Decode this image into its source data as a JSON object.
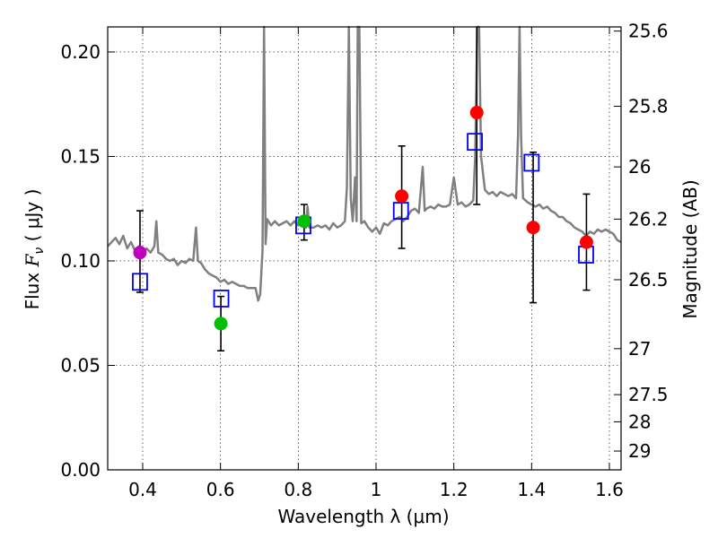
{
  "chart_data": {
    "type": "scatter",
    "xlabel": "Wavelength  λ (μm)",
    "ylabel_prefix": "Flux  ",
    "ylabel_symbol": "F",
    "ylabel_sub": "ν",
    "ylabel_units": "  ( μJy )",
    "y2label": "Magnitude (AB)",
    "xlim": [
      0.31,
      1.63
    ],
    "ylim": [
      0.0,
      0.212
    ],
    "grid": true,
    "x_ticks": [
      0.4,
      0.6,
      0.8,
      1.0,
      1.2,
      1.4,
      1.6
    ],
    "x_tick_labels": [
      "0.4",
      "0.6",
      "0.8",
      "1",
      "1.2",
      "1.4",
      "1.6"
    ],
    "y_ticks": [
      0.0,
      0.05,
      0.1,
      0.15,
      0.2
    ],
    "y_tick_labels": [
      "0.00",
      "0.05",
      "0.10",
      "0.15",
      "0.20"
    ],
    "y2_ticks": [
      {
        "label": "25.6",
        "flux": 0.21
      },
      {
        "label": "25.8",
        "flux": 0.174
      },
      {
        "label": "26",
        "flux": 0.145
      },
      {
        "label": "26.2",
        "flux": 0.12
      },
      {
        "label": "26.5",
        "flux": 0.091
      },
      {
        "label": "27",
        "flux": 0.058
      },
      {
        "label": "27.5",
        "flux": 0.036
      },
      {
        "label": "28",
        "flux": 0.023
      },
      {
        "label": "29",
        "flux": 0.009
      }
    ],
    "template_color": "#808080",
    "template_spectrum": [
      [
        0.31,
        0.107
      ],
      [
        0.32,
        0.109
      ],
      [
        0.33,
        0.111
      ],
      [
        0.34,
        0.108
      ],
      [
        0.35,
        0.112
      ],
      [
        0.36,
        0.106
      ],
      [
        0.37,
        0.109
      ],
      [
        0.38,
        0.105
      ],
      [
        0.39,
        0.107
      ],
      [
        0.4,
        0.103
      ],
      [
        0.41,
        0.106
      ],
      [
        0.42,
        0.104
      ],
      [
        0.43,
        0.107
      ],
      [
        0.435,
        0.119
      ],
      [
        0.44,
        0.104
      ],
      [
        0.45,
        0.103
      ],
      [
        0.46,
        0.101
      ],
      [
        0.47,
        0.1
      ],
      [
        0.48,
        0.101
      ],
      [
        0.49,
        0.098
      ],
      [
        0.5,
        0.1
      ],
      [
        0.51,
        0.099
      ],
      [
        0.52,
        0.101
      ],
      [
        0.53,
        0.1
      ],
      [
        0.537,
        0.116
      ],
      [
        0.542,
        0.1
      ],
      [
        0.55,
        0.099
      ],
      [
        0.56,
        0.096
      ],
      [
        0.57,
        0.094
      ],
      [
        0.58,
        0.093
      ],
      [
        0.59,
        0.092
      ],
      [
        0.6,
        0.09
      ],
      [
        0.61,
        0.091
      ],
      [
        0.62,
        0.089
      ],
      [
        0.63,
        0.09
      ],
      [
        0.64,
        0.089
      ],
      [
        0.65,
        0.088
      ],
      [
        0.66,
        0.088
      ],
      [
        0.67,
        0.087
      ],
      [
        0.68,
        0.087
      ],
      [
        0.69,
        0.087
      ],
      [
        0.697,
        0.081
      ],
      [
        0.702,
        0.084
      ],
      [
        0.708,
        0.105
      ],
      [
        0.712,
        0.212
      ],
      [
        0.716,
        0.108
      ],
      [
        0.72,
        0.12
      ],
      [
        0.73,
        0.117
      ],
      [
        0.74,
        0.119
      ],
      [
        0.75,
        0.117
      ],
      [
        0.76,
        0.118
      ],
      [
        0.77,
        0.119
      ],
      [
        0.78,
        0.117
      ],
      [
        0.79,
        0.119
      ],
      [
        0.8,
        0.117
      ],
      [
        0.81,
        0.119
      ],
      [
        0.82,
        0.116
      ],
      [
        0.824,
        0.126
      ],
      [
        0.828,
        0.116
      ],
      [
        0.84,
        0.116
      ],
      [
        0.85,
        0.117
      ],
      [
        0.86,
        0.116
      ],
      [
        0.87,
        0.117
      ],
      [
        0.88,
        0.115
      ],
      [
        0.89,
        0.118
      ],
      [
        0.9,
        0.116
      ],
      [
        0.91,
        0.117
      ],
      [
        0.92,
        0.119
      ],
      [
        0.925,
        0.135
      ],
      [
        0.93,
        0.212
      ],
      [
        0.935,
        0.13
      ],
      [
        0.94,
        0.119
      ],
      [
        0.946,
        0.14
      ],
      [
        0.95,
        0.119
      ],
      [
        0.953,
        0.212
      ],
      [
        0.957,
        0.212
      ],
      [
        0.962,
        0.118
      ],
      [
        0.97,
        0.119
      ],
      [
        0.98,
        0.116
      ],
      [
        0.99,
        0.114
      ],
      [
        1.0,
        0.116
      ],
      [
        1.01,
        0.113
      ],
      [
        1.02,
        0.118
      ],
      [
        1.03,
        0.117
      ],
      [
        1.04,
        0.119
      ],
      [
        1.05,
        0.12
      ],
      [
        1.06,
        0.121
      ],
      [
        1.07,
        0.119
      ],
      [
        1.08,
        0.121
      ],
      [
        1.09,
        0.124
      ],
      [
        1.1,
        0.125
      ],
      [
        1.11,
        0.123
      ],
      [
        1.12,
        0.145
      ],
      [
        1.125,
        0.124
      ],
      [
        1.13,
        0.125
      ],
      [
        1.14,
        0.126
      ],
      [
        1.15,
        0.125
      ],
      [
        1.16,
        0.127
      ],
      [
        1.17,
        0.126
      ],
      [
        1.18,
        0.126
      ],
      [
        1.19,
        0.127
      ],
      [
        1.2,
        0.14
      ],
      [
        1.21,
        0.127
      ],
      [
        1.22,
        0.128
      ],
      [
        1.23,
        0.126
      ],
      [
        1.24,
        0.127
      ],
      [
        1.25,
        0.129
      ],
      [
        1.255,
        0.15
      ],
      [
        1.26,
        0.212
      ],
      [
        1.265,
        0.212
      ],
      [
        1.27,
        0.15
      ],
      [
        1.28,
        0.134
      ],
      [
        1.29,
        0.132
      ],
      [
        1.3,
        0.133
      ],
      [
        1.31,
        0.131
      ],
      [
        1.32,
        0.133
      ],
      [
        1.33,
        0.132
      ],
      [
        1.34,
        0.131
      ],
      [
        1.35,
        0.132
      ],
      [
        1.36,
        0.13
      ],
      [
        1.365,
        0.16
      ],
      [
        1.369,
        0.212
      ],
      [
        1.373,
        0.16
      ],
      [
        1.378,
        0.13
      ],
      [
        1.39,
        0.128
      ],
      [
        1.4,
        0.127
      ],
      [
        1.41,
        0.126
      ],
      [
        1.42,
        0.127
      ],
      [
        1.43,
        0.125
      ],
      [
        1.44,
        0.126
      ],
      [
        1.45,
        0.124
      ],
      [
        1.46,
        0.123
      ],
      [
        1.47,
        0.121
      ],
      [
        1.48,
        0.121
      ],
      [
        1.49,
        0.119
      ],
      [
        1.5,
        0.118
      ],
      [
        1.51,
        0.116
      ],
      [
        1.52,
        0.115
      ],
      [
        1.53,
        0.114
      ],
      [
        1.54,
        0.112
      ],
      [
        1.55,
        0.114
      ],
      [
        1.56,
        0.113
      ],
      [
        1.57,
        0.115
      ],
      [
        1.58,
        0.114
      ],
      [
        1.59,
        0.115
      ],
      [
        1.6,
        0.114
      ],
      [
        1.61,
        0.113
      ],
      [
        1.62,
        0.11
      ],
      [
        1.63,
        0.109
      ]
    ],
    "observed": [
      {
        "x": 0.393,
        "y": 0.104,
        "yerr_low": 0.085,
        "yerr_high": 0.124,
        "color": "#bf00bf"
      },
      {
        "x": 0.601,
        "y": 0.07,
        "yerr_low": 0.057,
        "yerr_high": 0.083,
        "color": "#00bf00"
      },
      {
        "x": 0.815,
        "y": 0.119,
        "yerr_low": 0.11,
        "yerr_high": 0.127,
        "color": "#00bf00"
      },
      {
        "x": 1.066,
        "y": 0.131,
        "yerr_low": 0.106,
        "yerr_high": 0.155,
        "color": "#ff0000"
      },
      {
        "x": 1.259,
        "y": 0.171,
        "yerr_low": 0.127,
        "yerr_high": 0.215,
        "color": "#ff0000"
      },
      {
        "x": 1.404,
        "y": 0.116,
        "yerr_low": 0.08,
        "yerr_high": 0.152,
        "color": "#ff0000"
      },
      {
        "x": 1.541,
        "y": 0.109,
        "yerr_low": 0.086,
        "yerr_high": 0.132,
        "color": "#ff0000"
      }
    ],
    "model_points": [
      {
        "x": 0.393,
        "y": 0.09
      },
      {
        "x": 0.602,
        "y": 0.082
      },
      {
        "x": 0.813,
        "y": 0.117
      },
      {
        "x": 1.064,
        "y": 0.124
      },
      {
        "x": 1.254,
        "y": 0.157
      },
      {
        "x": 1.4,
        "y": 0.147
      },
      {
        "x": 1.54,
        "y": 0.103
      }
    ],
    "model_color": "#0000ff"
  }
}
